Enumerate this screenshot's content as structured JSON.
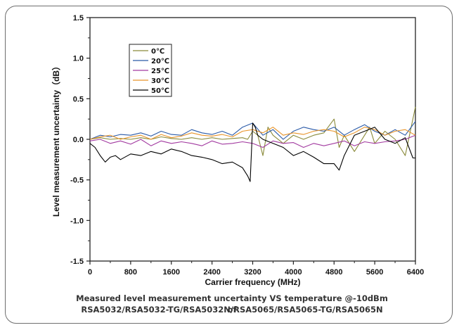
{
  "chart_data": {
    "type": "line",
    "xlabel": "Carrier frequency (MHz)",
    "ylabel": "Level measurement uncertainty（dB）",
    "xlim": [
      0,
      6400
    ],
    "ylim": [
      -1.5,
      1.5
    ],
    "xticks": [
      "0",
      "800",
      "1600",
      "2400",
      "3200",
      "4000",
      "4800",
      "5600",
      "6400"
    ],
    "yticks": [
      "1.5",
      "1.0",
      "0.5",
      "0.0",
      "-0.5",
      "-1.0",
      "-1.5"
    ],
    "grid": false,
    "legend_position": "top-left",
    "colors": {
      "0C": "#8a8a3a",
      "20C": "#2a5aa8",
      "25C": "#a23aa0",
      "30C": "#e8942a",
      "50C": "#000000"
    },
    "series": [
      {
        "name": "0℃",
        "x": [
          0,
          200,
          400,
          600,
          800,
          1000,
          1200,
          1400,
          1600,
          1800,
          2000,
          2200,
          2400,
          2600,
          2800,
          3000,
          3100,
          3200,
          3300,
          3400,
          3500,
          3600,
          3800,
          4000,
          4200,
          4400,
          4600,
          4800,
          4900,
          5000,
          5200,
          5400,
          5500,
          5600,
          5800,
          6000,
          6200,
          6400
        ],
        "y": [
          0.0,
          0.02,
          0.0,
          0.01,
          0.0,
          0.02,
          0.0,
          0.03,
          0.01,
          0.0,
          0.02,
          0.0,
          0.02,
          0.0,
          0.01,
          0.02,
          0.0,
          0.1,
          0.05,
          -0.2,
          0.15,
          0.05,
          -0.05,
          0.05,
          0.0,
          0.05,
          0.08,
          0.25,
          -0.1,
          0.05,
          -0.15,
          0.05,
          0.15,
          -0.05,
          0.1,
          0.0,
          -0.2,
          0.4
        ]
      },
      {
        "name": "20℃",
        "x": [
          0,
          200,
          400,
          600,
          800,
          1000,
          1200,
          1400,
          1600,
          1800,
          2000,
          2200,
          2400,
          2600,
          2800,
          3000,
          3200,
          3400,
          3600,
          3800,
          4000,
          4200,
          4400,
          4600,
          4800,
          5000,
          5200,
          5400,
          5600,
          5800,
          6000,
          6200,
          6400
        ],
        "y": [
          0.0,
          0.05,
          0.03,
          0.06,
          0.05,
          0.08,
          0.04,
          0.1,
          0.06,
          0.05,
          0.12,
          0.08,
          0.06,
          0.1,
          0.05,
          0.15,
          0.2,
          0.05,
          0.12,
          0.0,
          0.1,
          0.15,
          0.12,
          0.1,
          0.15,
          0.05,
          0.12,
          0.18,
          0.1,
          0.05,
          0.12,
          0.05,
          0.22
        ]
      },
      {
        "name": "25℃",
        "x": [
          0,
          200,
          400,
          600,
          800,
          1000,
          1200,
          1400,
          1600,
          1800,
          2000,
          2200,
          2400,
          2600,
          2800,
          3000,
          3200,
          3400,
          3600,
          3800,
          4000,
          4200,
          4400,
          4600,
          4800,
          5000,
          5200,
          5400,
          5600,
          5800,
          6000,
          6200,
          6400
        ],
        "y": [
          -0.02,
          0.0,
          -0.05,
          -0.02,
          -0.06,
          0.0,
          -0.08,
          -0.02,
          -0.05,
          -0.03,
          -0.05,
          -0.08,
          -0.02,
          -0.06,
          -0.05,
          -0.03,
          -0.05,
          -0.1,
          -0.02,
          -0.05,
          -0.04,
          -0.1,
          -0.05,
          -0.08,
          -0.05,
          -0.02,
          -0.08,
          -0.03,
          -0.05,
          -0.03,
          -0.02,
          0.0,
          0.05
        ]
      },
      {
        "name": "30℃",
        "x": [
          0,
          200,
          400,
          600,
          800,
          1000,
          1200,
          1400,
          1600,
          1800,
          2000,
          2200,
          2400,
          2600,
          2800,
          3000,
          3200,
          3400,
          3600,
          3800,
          4000,
          4200,
          4400,
          4600,
          4800,
          5000,
          5200,
          5400,
          5600,
          5800,
          6000,
          6200,
          6400
        ],
        "y": [
          0.0,
          0.03,
          0.05,
          0.0,
          0.03,
          0.05,
          0.0,
          0.06,
          0.02,
          0.04,
          0.08,
          0.05,
          0.04,
          0.06,
          0.03,
          0.1,
          0.12,
          0.08,
          0.15,
          0.05,
          0.08,
          0.06,
          0.1,
          0.12,
          0.1,
          0.03,
          0.08,
          0.15,
          0.12,
          0.05,
          0.1,
          0.12,
          0.05
        ]
      },
      {
        "name": "50℃",
        "x": [
          0,
          100,
          200,
          300,
          400,
          500,
          600,
          800,
          1000,
          1200,
          1400,
          1600,
          1800,
          2000,
          2200,
          2400,
          2600,
          2800,
          3000,
          3100,
          3150,
          3200,
          3250,
          3300,
          3400,
          3600,
          3800,
          4000,
          4200,
          4400,
          4600,
          4800,
          4900,
          5000,
          5200,
          5400,
          5600,
          5800,
          6000,
          6200,
          6350,
          6400
        ],
        "y": [
          -0.05,
          -0.1,
          -0.2,
          -0.28,
          -0.22,
          -0.2,
          -0.25,
          -0.18,
          -0.2,
          -0.15,
          -0.18,
          -0.12,
          -0.15,
          -0.2,
          -0.22,
          -0.25,
          -0.3,
          -0.28,
          -0.35,
          -0.45,
          -0.52,
          0.2,
          0.15,
          0.05,
          0.0,
          -0.05,
          -0.1,
          -0.2,
          -0.15,
          -0.22,
          -0.3,
          -0.3,
          -0.38,
          -0.2,
          0.05,
          0.1,
          0.15,
          0.0,
          -0.05,
          0.02,
          -0.23,
          -0.23
        ]
      }
    ]
  },
  "caption_line1": "Measured level measurement uncertainty VS temperature @-10dBm of",
  "caption_line2": "RSA5032/RSA5032-TG/RSA5032N/RSA5065/RSA5065-TG/RSA5065N"
}
